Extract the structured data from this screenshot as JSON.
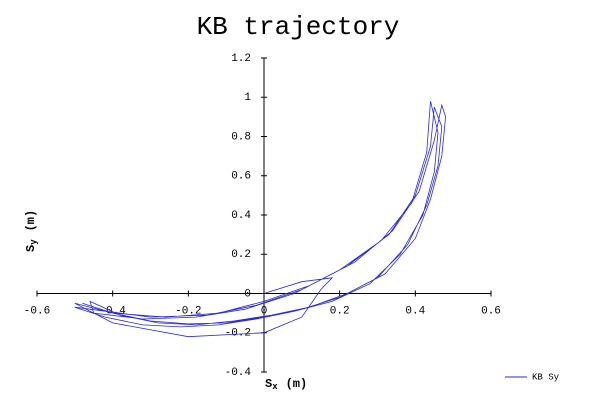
{
  "chart_data": {
    "type": "line",
    "title": "KB trajectory",
    "x_label": [
      "S",
      "x",
      "(m)"
    ],
    "y_label": [
      "S",
      "y",
      "(m)"
    ],
    "xlim": [
      -0.6,
      0.6
    ],
    "ylim": [
      -0.4,
      1.2
    ],
    "xticks": [
      -0.6,
      -0.4,
      -0.2,
      0,
      0.2,
      0.4,
      0.6
    ],
    "yticks": [
      -0.4,
      -0.2,
      0,
      0.2,
      0.4,
      0.6,
      0.8,
      1,
      1.2
    ],
    "legend": "bottom-right",
    "series": [
      {
        "name": "KB Sy",
        "color": "#2a2ad4",
        "x": [
          -0.48,
          -0.4,
          -0.3,
          -0.2,
          -0.1,
          0.0,
          0.1,
          0.2,
          0.3,
          0.38,
          0.43,
          0.46,
          0.47,
          0.45,
          0.44,
          0.4,
          0.33,
          0.22,
          0.1,
          -0.02,
          -0.15,
          -0.3,
          -0.42,
          -0.5,
          -0.42,
          -0.32,
          -0.22,
          -0.12,
          -0.02,
          0.08,
          0.18,
          0.28,
          0.36,
          0.42,
          0.45,
          0.46,
          0.44,
          0.43,
          0.39,
          0.31,
          0.2,
          0.08,
          -0.05,
          -0.18,
          -0.32,
          -0.45,
          -0.46,
          -0.38,
          -0.28,
          -0.18,
          -0.08,
          0.02,
          0.12,
          0.22,
          0.32,
          0.4,
          0.44,
          0.47,
          0.48,
          0.47,
          0.45,
          0.41,
          0.34,
          0.24,
          0.12,
          0.0,
          -0.12,
          -0.26,
          -0.4,
          -0.5,
          -0.4,
          -0.2,
          0.0,
          0.1,
          0.15,
          0.18,
          0.1,
          0.0
        ],
        "values": [
          -0.05,
          -0.1,
          -0.14,
          -0.155,
          -0.15,
          -0.12,
          -0.08,
          -0.02,
          0.08,
          0.25,
          0.45,
          0.65,
          0.85,
          0.95,
          0.75,
          0.5,
          0.3,
          0.14,
          0.02,
          -0.06,
          -0.11,
          -0.12,
          -0.09,
          -0.07,
          -0.12,
          -0.16,
          -0.17,
          -0.16,
          -0.13,
          -0.09,
          -0.04,
          0.05,
          0.2,
          0.4,
          0.62,
          0.82,
          0.98,
          0.72,
          0.46,
          0.27,
          0.12,
          0.0,
          -0.08,
          -0.12,
          -0.13,
          -0.1,
          -0.04,
          -0.11,
          -0.15,
          -0.16,
          -0.14,
          -0.11,
          -0.07,
          0.0,
          0.1,
          0.28,
          0.48,
          0.7,
          0.9,
          0.96,
          0.78,
          0.52,
          0.32,
          0.16,
          0.04,
          -0.04,
          -0.1,
          -0.12,
          -0.1,
          -0.05,
          -0.15,
          -0.22,
          -0.2,
          -0.12,
          0.02,
          0.08,
          0.06,
          0.0
        ]
      }
    ]
  }
}
